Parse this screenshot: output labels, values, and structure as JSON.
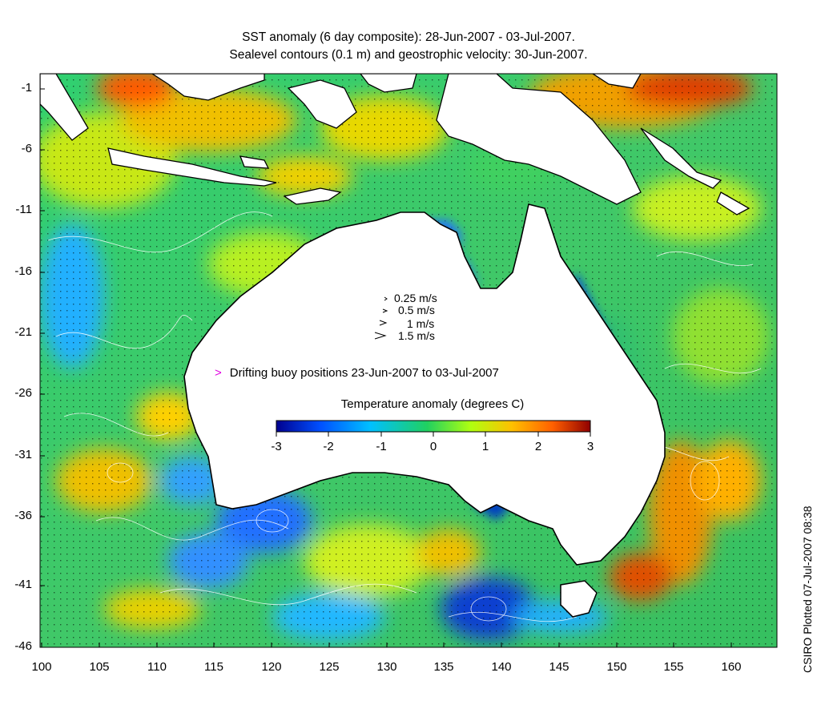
{
  "title": {
    "line1": "SST anomaly (6 day composite): 28-Jun-2007 - 03-Jul-2007.",
    "line2": "Sealevel contours (0.1 m) and geostrophic velocity: 30-Jun-2007."
  },
  "axes": {
    "y_ticks": [
      "-1",
      "-6",
      "-11",
      "-16",
      "-21",
      "-26",
      "-31",
      "-36",
      "-41",
      "-46"
    ],
    "x_ticks": [
      "100",
      "105",
      "110",
      "115",
      "120",
      "125",
      "130",
      "135",
      "140",
      "145",
      "150",
      "155",
      "160"
    ],
    "lon_range": [
      100,
      164
    ],
    "lat_range": [
      -46,
      1
    ]
  },
  "velocity_legend": [
    "0.25 m/s",
    "0.5 m/s",
    "1 m/s",
    "1.5 m/s"
  ],
  "buoy_legend": {
    "marker": ">",
    "text": "Drifting buoy positions 23-Jun-2007 to 03-Jul-2007",
    "color": "#e000e0"
  },
  "colorbar": {
    "title": "Temperature anomaly (degrees C)",
    "ticks": [
      "-3",
      "-2",
      "-1",
      "0",
      "1",
      "2",
      "3"
    ],
    "range": [
      -3,
      3
    ],
    "colors": [
      "#00008f",
      "#0050ff",
      "#00c0ff",
      "#20d060",
      "#b0ff10",
      "#ffc000",
      "#ff6000",
      "#900000"
    ]
  },
  "side_label": "CSIRO Plotted 07-Jul-2007 08:38",
  "colors": {
    "land": "#ffffff",
    "coast": "#000000",
    "contour": "#ffffff",
    "vector": "#000000"
  }
}
